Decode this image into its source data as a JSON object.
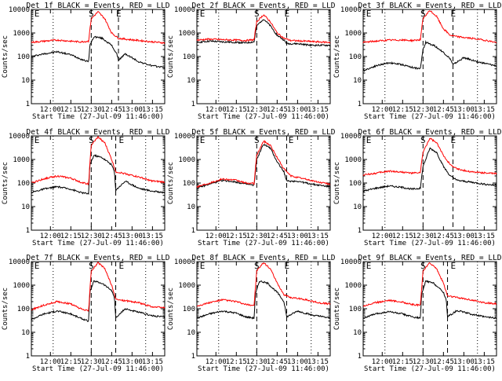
{
  "figure": {
    "xlabel": "Start Time (27-Jul-09 11:46:00)",
    "ylabel": "Counts/sec",
    "x_ticks": [
      "12:00",
      "12:15",
      "12:30",
      "12:45",
      "13:00",
      "13:15"
    ],
    "y_ticks": [
      "10000",
      "1000",
      "100",
      "10",
      "1"
    ],
    "colors": {
      "events": "#000000",
      "lld": "#ff0000",
      "axes": "#000000",
      "background": "#ffffff"
    }
  },
  "chart_data": [
    {
      "type": "line",
      "title": "Det 1f BLACK = Events, RED = LLD",
      "xlabel": "Start Time (27-Jul-09 11:46:00)",
      "ylabel": "Counts/sec",
      "yscale": "log",
      "ylim": [
        1,
        10000
      ],
      "xlim": [
        "11:46",
        "13:24"
      ],
      "markers": {
        "S": "12:30",
        "E_left": "11:47",
        "E_right": "12:50"
      },
      "vlines_dashed": [
        "12:30",
        "12:50"
      ],
      "vlines_dotted": [
        "12:02",
        "13:10"
      ],
      "series": [
        {
          "name": "Events",
          "color": "#000000",
          "x": [
            "11:46",
            "11:55",
            "12:05",
            "12:15",
            "12:22",
            "12:28",
            "12:29",
            "12:32",
            "12:38",
            "12:45",
            "12:49",
            "12:50",
            "12:55",
            "13:05",
            "13:15",
            "13:24"
          ],
          "y": [
            100,
            130,
            160,
            120,
            80,
            60,
            300,
            700,
            600,
            300,
            120,
            70,
            130,
            60,
            40,
            35
          ]
        },
        {
          "name": "LLD",
          "color": "#ff0000",
          "x": [
            "11:46",
            "11:55",
            "12:05",
            "12:15",
            "12:22",
            "12:28",
            "12:30",
            "12:35",
            "12:40",
            "12:45",
            "12:50",
            "12:55",
            "13:05",
            "13:15",
            "13:24"
          ],
          "y": [
            400,
            450,
            500,
            450,
            420,
            450,
            4000,
            8000,
            4000,
            1000,
            600,
            550,
            480,
            420,
            380
          ]
        }
      ]
    },
    {
      "type": "line",
      "title": "Det 2f BLACK = Events, RED = LLD",
      "xlabel": "Start Time (27-Jul-09 11:46:00)",
      "ylabel": "Counts/sec",
      "yscale": "log",
      "ylim": [
        1,
        10000
      ],
      "xlim": [
        "11:46",
        "13:24"
      ],
      "markers": {
        "S": "12:30",
        "E_left": "11:47",
        "E_right": "12:52"
      },
      "vlines_dashed": [
        "12:30",
        "12:52"
      ],
      "vlines_dotted": [
        "12:02",
        "13:10"
      ],
      "series": [
        {
          "name": "Events",
          "color": "#000000",
          "x": [
            "11:46",
            "11:55",
            "12:05",
            "12:15",
            "12:22",
            "12:28",
            "12:30",
            "12:35",
            "12:40",
            "12:45",
            "12:50",
            "12:52",
            "13:00",
            "13:10",
            "13:24"
          ],
          "y": [
            400,
            450,
            420,
            400,
            380,
            420,
            2000,
            4000,
            2000,
            800,
            500,
            350,
            350,
            300,
            300
          ]
        },
        {
          "name": "LLD",
          "color": "#ff0000",
          "x": [
            "11:46",
            "11:55",
            "12:05",
            "12:15",
            "12:22",
            "12:28",
            "12:30",
            "12:35",
            "12:40",
            "12:45",
            "12:50",
            "12:55",
            "13:05",
            "13:15",
            "13:24"
          ],
          "y": [
            500,
            550,
            520,
            500,
            480,
            520,
            3000,
            6000,
            3000,
            1000,
            600,
            480,
            450,
            420,
            400
          ]
        }
      ]
    },
    {
      "type": "line",
      "title": "Det 3f BLACK = Events, RED = LLD",
      "xlabel": "Start Time (27-Jul-09 11:46:00)",
      "ylabel": "Counts/sec",
      "yscale": "log",
      "ylim": [
        1,
        10000
      ],
      "xlim": [
        "11:46",
        "13:24"
      ],
      "markers": {
        "S": "12:30",
        "E_left": "11:47",
        "E_right": "12:52"
      },
      "vlines_dashed": [
        "12:30",
        "12:52"
      ],
      "vlines_dotted": [
        "12:02",
        "13:10"
      ],
      "series": [
        {
          "name": "Events",
          "color": "#000000",
          "x": [
            "11:46",
            "11:55",
            "12:05",
            "12:15",
            "12:22",
            "12:28",
            "12:30",
            "12:32",
            "12:38",
            "12:45",
            "12:50",
            "12:52",
            "13:00",
            "13:10",
            "13:24"
          ],
          "y": [
            25,
            40,
            55,
            45,
            35,
            30,
            200,
            400,
            300,
            150,
            80,
            45,
            90,
            60,
            40
          ]
        },
        {
          "name": "LLD",
          "color": "#ff0000",
          "x": [
            "11:46",
            "11:55",
            "12:05",
            "12:15",
            "12:22",
            "12:28",
            "12:30",
            "12:35",
            "12:40",
            "12:45",
            "12:50",
            "12:55",
            "13:05",
            "13:15",
            "13:24"
          ],
          "y": [
            400,
            450,
            500,
            500,
            480,
            520,
            4000,
            9000,
            5000,
            1500,
            800,
            700,
            600,
            500,
            400
          ]
        }
      ]
    },
    {
      "type": "line",
      "title": "Det 4f BLACK = Events, RED = LLD",
      "xlabel": "Start Time (27-Jul-09 11:46:00)",
      "ylabel": "Counts/sec",
      "yscale": "log",
      "ylim": [
        1,
        10000
      ],
      "xlim": [
        "11:46",
        "13:24"
      ],
      "markers": {
        "S": "12:30",
        "E_left": "11:47",
        "E_right": "12:52"
      },
      "vlines_dashed": [
        "12:30",
        "12:48"
      ],
      "vlines_dotted": [
        "12:02",
        "13:10"
      ],
      "series": [
        {
          "name": "Events",
          "color": "#000000",
          "x": [
            "11:46",
            "11:55",
            "12:05",
            "12:15",
            "12:22",
            "12:28",
            "12:29",
            "12:32",
            "12:38",
            "12:45",
            "12:47",
            "12:48",
            "12:55",
            "13:05",
            "13:15",
            "13:24"
          ],
          "y": [
            40,
            55,
            70,
            55,
            40,
            35,
            600,
            1500,
            1200,
            600,
            300,
            50,
            120,
            60,
            45,
            40
          ]
        },
        {
          "name": "LLD",
          "color": "#ff0000",
          "x": [
            "11:46",
            "11:55",
            "12:05",
            "12:15",
            "12:22",
            "12:28",
            "12:30",
            "12:35",
            "12:40",
            "12:45",
            "12:48",
            "12:55",
            "13:05",
            "13:15",
            "13:24"
          ],
          "y": [
            100,
            150,
            200,
            160,
            110,
            90,
            4000,
            9000,
            5000,
            1000,
            300,
            250,
            180,
            120,
            110
          ]
        }
      ]
    },
    {
      "type": "line",
      "title": "Det 5f BLACK = Events, RED = LLD",
      "xlabel": "Start Time (27-Jul-09 11:46:00)",
      "ylabel": "Counts/sec",
      "yscale": "log",
      "ylim": [
        1,
        10000
      ],
      "xlim": [
        "11:46",
        "13:24"
      ],
      "markers": {
        "S": "12:30",
        "E_left": "11:47",
        "E_right": "12:55"
      },
      "vlines_dashed": [
        "12:30",
        "12:52"
      ],
      "vlines_dotted": [
        "12:02",
        "13:10"
      ],
      "series": [
        {
          "name": "Events",
          "color": "#000000",
          "x": [
            "11:46",
            "11:55",
            "12:05",
            "12:15",
            "12:22",
            "12:28",
            "12:30",
            "12:35",
            "12:40",
            "12:45",
            "12:50",
            "12:52",
            "13:00",
            "13:10",
            "13:24"
          ],
          "y": [
            60,
            90,
            130,
            110,
            90,
            80,
            1000,
            4500,
            3000,
            800,
            300,
            120,
            120,
            90,
            70
          ]
        },
        {
          "name": "LLD",
          "color": "#ff0000",
          "x": [
            "11:46",
            "11:55",
            "12:05",
            "12:15",
            "12:22",
            "12:28",
            "12:30",
            "12:35",
            "12:40",
            "12:45",
            "12:50",
            "12:55",
            "13:05",
            "13:15",
            "13:24"
          ],
          "y": [
            70,
            100,
            150,
            130,
            100,
            95,
            1500,
            6000,
            4000,
            1200,
            400,
            200,
            150,
            110,
            90
          ]
        }
      ]
    },
    {
      "type": "line",
      "title": "Det 6f BLACK = Events, RED = LLD",
      "xlabel": "Start Time (27-Jul-09 11:46:00)",
      "ylabel": "Counts/sec",
      "yscale": "log",
      "ylim": [
        1,
        10000
      ],
      "xlim": [
        "11:46",
        "13:24"
      ],
      "markers": {
        "S": "12:30",
        "E_left": "11:47",
        "E_right": "12:52"
      },
      "vlines_dashed": [
        "12:30",
        "12:52"
      ],
      "vlines_dotted": [
        "12:02",
        "13:10"
      ],
      "series": [
        {
          "name": "Events",
          "color": "#000000",
          "x": [
            "11:46",
            "11:55",
            "12:05",
            "12:15",
            "12:22",
            "12:28",
            "12:30",
            "12:35",
            "12:40",
            "12:45",
            "12:50",
            "12:55",
            "13:05",
            "13:15",
            "13:24"
          ],
          "y": [
            45,
            60,
            75,
            65,
            55,
            60,
            500,
            3000,
            2000,
            500,
            200,
            130,
            110,
            90,
            80
          ]
        },
        {
          "name": "LLD",
          "color": "#ff0000",
          "x": [
            "11:46",
            "11:55",
            "12:05",
            "12:15",
            "12:22",
            "12:28",
            "12:30",
            "12:35",
            "12:40",
            "12:45",
            "12:50",
            "12:55",
            "13:05",
            "13:15",
            "13:24"
          ],
          "y": [
            220,
            260,
            320,
            290,
            260,
            280,
            2000,
            8000,
            5000,
            1500,
            600,
            400,
            300,
            270,
            250
          ]
        }
      ]
    },
    {
      "type": "line",
      "title": "Det 7f BLACK = Events, RED = LLD",
      "xlabel": "Start Time (27-Jul-09 11:46:00)",
      "ylabel": "Counts/sec",
      "yscale": "log",
      "ylim": [
        1,
        10000
      ],
      "xlim": [
        "11:46",
        "13:24"
      ],
      "markers": {
        "S": "12:30",
        "E_left": "11:47",
        "E_right": "12:52"
      },
      "vlines_dashed": [
        "12:30",
        "12:48"
      ],
      "vlines_dotted": [
        "12:02",
        "13:10"
      ],
      "series": [
        {
          "name": "Events",
          "color": "#000000",
          "x": [
            "11:46",
            "11:55",
            "12:05",
            "12:15",
            "12:22",
            "12:28",
            "12:29",
            "12:32",
            "12:38",
            "12:45",
            "12:47",
            "12:48",
            "12:55",
            "13:05",
            "13:15",
            "13:24"
          ],
          "y": [
            35,
            60,
            80,
            60,
            40,
            30,
            500,
            1500,
            1200,
            600,
            300,
            40,
            100,
            70,
            50,
            45
          ]
        },
        {
          "name": "LLD",
          "color": "#ff0000",
          "x": [
            "11:46",
            "11:55",
            "12:05",
            "12:15",
            "12:22",
            "12:28",
            "12:30",
            "12:35",
            "12:40",
            "12:45",
            "12:48",
            "12:55",
            "13:05",
            "13:15",
            "13:24"
          ],
          "y": [
            90,
            140,
            200,
            160,
            100,
            80,
            4000,
            9000,
            5000,
            1000,
            250,
            220,
            180,
            120,
            110
          ]
        }
      ]
    },
    {
      "type": "line",
      "title": "Det 8f BLACK = Events, RED = LLD",
      "xlabel": "Start Time (27-Jul-09 11:46:00)",
      "ylabel": "Counts/sec",
      "yscale": "log",
      "ylim": [
        1,
        10000
      ],
      "xlim": [
        "11:46",
        "13:24"
      ],
      "markers": {
        "S": "12:30",
        "E_left": "11:47",
        "E_right": "12:52"
      },
      "vlines_dashed": [
        "12:30",
        "12:52"
      ],
      "vlines_dotted": [
        "12:02",
        "13:10"
      ],
      "series": [
        {
          "name": "Events",
          "color": "#000000",
          "x": [
            "11:46",
            "11:55",
            "12:05",
            "12:15",
            "12:22",
            "12:28",
            "12:29",
            "12:32",
            "12:38",
            "12:45",
            "12:50",
            "12:52",
            "13:00",
            "13:10",
            "13:24"
          ],
          "y": [
            40,
            60,
            80,
            65,
            45,
            40,
            400,
            1500,
            1200,
            500,
            200,
            45,
            80,
            55,
            40
          ]
        },
        {
          "name": "LLD",
          "color": "#ff0000",
          "x": [
            "11:46",
            "11:55",
            "12:05",
            "12:15",
            "12:22",
            "12:28",
            "12:30",
            "12:35",
            "12:40",
            "12:45",
            "12:50",
            "12:55",
            "13:05",
            "13:15",
            "13:24"
          ],
          "y": [
            130,
            180,
            240,
            200,
            150,
            140,
            4000,
            9000,
            5000,
            1200,
            400,
            300,
            250,
            180,
            160
          ]
        }
      ]
    },
    {
      "type": "line",
      "title": "Det 9f BLACK = Events, RED = LLD",
      "xlabel": "Start Time (27-Jul-09 11:46:00)",
      "ylabel": "Counts/sec",
      "yscale": "log",
      "ylim": [
        1,
        10000
      ],
      "xlim": [
        "11:46",
        "13:24"
      ],
      "markers": {
        "S": "12:30",
        "E_left": "11:47",
        "E_right": "12:52"
      },
      "vlines_dashed": [
        "12:30",
        "12:48"
      ],
      "vlines_dotted": [
        "12:02",
        "13:10"
      ],
      "series": [
        {
          "name": "Events",
          "color": "#000000",
          "x": [
            "11:46",
            "11:55",
            "12:05",
            "12:15",
            "12:22",
            "12:28",
            "12:29",
            "12:32",
            "12:38",
            "12:45",
            "12:47",
            "12:48",
            "12:55",
            "13:05",
            "13:15",
            "13:24"
          ],
          "y": [
            40,
            60,
            75,
            60,
            45,
            40,
            400,
            1500,
            1200,
            500,
            250,
            45,
            85,
            60,
            45,
            40
          ]
        },
        {
          "name": "LLD",
          "color": "#ff0000",
          "x": [
            "11:46",
            "11:55",
            "12:05",
            "12:15",
            "12:22",
            "12:28",
            "12:30",
            "12:35",
            "12:40",
            "12:45",
            "12:48",
            "12:55",
            "13:05",
            "13:15",
            "13:24"
          ],
          "y": [
            130,
            180,
            230,
            190,
            150,
            140,
            4000,
            9000,
            5000,
            1200,
            350,
            300,
            240,
            180,
            160
          ]
        }
      ]
    }
  ]
}
